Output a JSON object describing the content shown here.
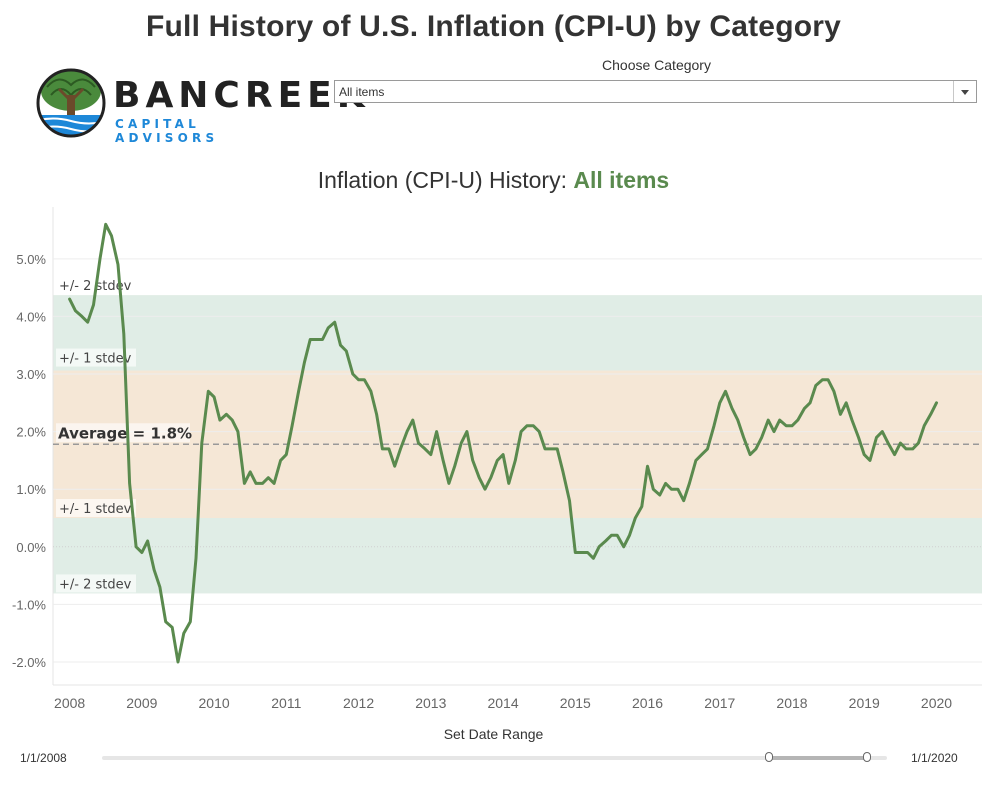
{
  "header": {
    "title": "Full History of U.S. Inflation (CPI-U) by Category"
  },
  "logo": {
    "name": "BANCREEK",
    "tagline": "CAPITAL ADVISORS",
    "colors": {
      "tree": "#4a8a3c",
      "water": "#1e88d8",
      "trunk": "#6b4a2a"
    }
  },
  "filter": {
    "label": "Choose Category",
    "value": "All items"
  },
  "chart_data": {
    "type": "line",
    "title_prefix": "Inflation (CPI-U) History: ",
    "title_highlight": "All items",
    "xlabel": "",
    "ylabel": "",
    "x_ticks": [
      "2008",
      "2009",
      "2010",
      "2011",
      "2012",
      "2013",
      "2014",
      "2015",
      "2016",
      "2017",
      "2018",
      "2019",
      "2020"
    ],
    "y_ticks": [
      "5.0%",
      "4.0%",
      "3.0%",
      "2.0%",
      "1.0%",
      "0.0%",
      "-1.0%",
      "-2.0%"
    ],
    "y_tick_values": [
      5,
      4,
      3,
      2,
      1,
      0,
      -1,
      -2
    ],
    "ylim": [
      -2.4,
      5.9
    ],
    "xlim": [
      2007.77,
      2020.63
    ],
    "grid": true,
    "average": 1.78,
    "average_label": "Average = 1.8%",
    "band_1sd": [
      0.5,
      3.06
    ],
    "band_2sd": [
      -0.81,
      4.37
    ],
    "band_labels": {
      "upper_2sd": "+/- 2 stdev",
      "upper_1sd": "+/- 1 stdev",
      "lower_1sd": "+/- 1 stdev",
      "lower_2sd": "+/- 2 stdev"
    },
    "colors": {
      "line": "#5a8a4e",
      "band_1sd": "#f5e7d6",
      "band_2sd": "#e0ede6",
      "average": "#999999"
    },
    "series": [
      {
        "x": [
          2008.0,
          2008.08,
          2008.17,
          2008.25,
          2008.33,
          2008.42,
          2008.5,
          2008.58,
          2008.67,
          2008.75,
          2008.83,
          2008.92,
          2009.0,
          2009.08,
          2009.17,
          2009.25,
          2009.33,
          2009.42,
          2009.5,
          2009.58,
          2009.67,
          2009.75,
          2009.83,
          2009.92,
          2010.0,
          2010.08,
          2010.17,
          2010.25,
          2010.33,
          2010.42,
          2010.5,
          2010.58,
          2010.67,
          2010.75,
          2010.83,
          2010.92,
          2011.0,
          2011.08,
          2011.17,
          2011.25,
          2011.33,
          2011.42,
          2011.5,
          2011.58,
          2011.67,
          2011.75,
          2011.83,
          2011.92,
          2012.0,
          2012.08,
          2012.17,
          2012.25,
          2012.33,
          2012.42,
          2012.5,
          2012.58,
          2012.67,
          2012.75,
          2012.83,
          2012.92,
          2013.0,
          2013.08,
          2013.17,
          2013.25,
          2013.33,
          2013.42,
          2013.5,
          2013.58,
          2013.67,
          2013.75,
          2013.83,
          2013.92,
          2014.0,
          2014.08,
          2014.17,
          2014.25,
          2014.33,
          2014.42,
          2014.5,
          2014.58,
          2014.67,
          2014.75,
          2014.83,
          2014.92,
          2015.0,
          2015.08,
          2015.17,
          2015.25,
          2015.33,
          2015.42,
          2015.5,
          2015.58,
          2015.67,
          2015.75,
          2015.83,
          2015.92,
          2016.0,
          2016.08,
          2016.17,
          2016.25,
          2016.33,
          2016.42,
          2016.5,
          2016.58,
          2016.67,
          2016.75,
          2016.83,
          2016.92,
          2017.0,
          2017.08,
          2017.17,
          2017.25,
          2017.33,
          2017.42,
          2017.5,
          2017.58,
          2017.67,
          2017.75,
          2017.83,
          2017.92,
          2018.0,
          2018.08,
          2018.17,
          2018.25,
          2018.33,
          2018.42,
          2018.5,
          2018.58,
          2018.67,
          2018.75,
          2018.83,
          2018.92,
          2019.0,
          2019.08,
          2019.17,
          2019.25,
          2019.33,
          2019.42,
          2019.5,
          2019.58,
          2019.67,
          2019.75,
          2019.83,
          2019.92,
          2020.0
        ],
        "y": [
          4.3,
          4.1,
          4.0,
          3.9,
          4.2,
          5.0,
          5.6,
          5.4,
          4.9,
          3.7,
          1.1,
          0.0,
          -0.1,
          0.1,
          -0.4,
          -0.7,
          -1.3,
          -1.4,
          -2.0,
          -1.5,
          -1.3,
          -0.2,
          1.8,
          2.7,
          2.6,
          2.2,
          2.3,
          2.2,
          2.0,
          1.1,
          1.3,
          1.1,
          1.1,
          1.2,
          1.1,
          1.5,
          1.6,
          2.1,
          2.7,
          3.2,
          3.6,
          3.6,
          3.6,
          3.8,
          3.9,
          3.5,
          3.4,
          3.0,
          2.9,
          2.9,
          2.7,
          2.3,
          1.7,
          1.7,
          1.4,
          1.7,
          2.0,
          2.2,
          1.8,
          1.7,
          1.6,
          2.0,
          1.5,
          1.1,
          1.4,
          1.8,
          2.0,
          1.5,
          1.2,
          1.0,
          1.2,
          1.5,
          1.6,
          1.1,
          1.5,
          2.0,
          2.1,
          2.1,
          2.0,
          1.7,
          1.7,
          1.7,
          1.3,
          0.8,
          -0.1,
          -0.1,
          -0.1,
          -0.2,
          0.0,
          0.1,
          0.2,
          0.2,
          0.0,
          0.2,
          0.5,
          0.7,
          1.4,
          1.0,
          0.9,
          1.1,
          1.0,
          1.0,
          0.8,
          1.1,
          1.5,
          1.6,
          1.7,
          2.1,
          2.5,
          2.7,
          2.4,
          2.2,
          1.9,
          1.6,
          1.7,
          1.9,
          2.2,
          2.0,
          2.2,
          2.1,
          2.1,
          2.2,
          2.4,
          2.5,
          2.8,
          2.9,
          2.9,
          2.7,
          2.3,
          2.5,
          2.2,
          1.9,
          1.6,
          1.5,
          1.9,
          2.0,
          1.8,
          1.6,
          1.8,
          1.7,
          1.7,
          1.8,
          2.1,
          2.3,
          2.5
        ]
      }
    ]
  },
  "date_range": {
    "label": "Set Date Range",
    "start": "1/1/2008",
    "end": "1/1/2020",
    "selection": [
      0.85,
      0.975
    ]
  }
}
